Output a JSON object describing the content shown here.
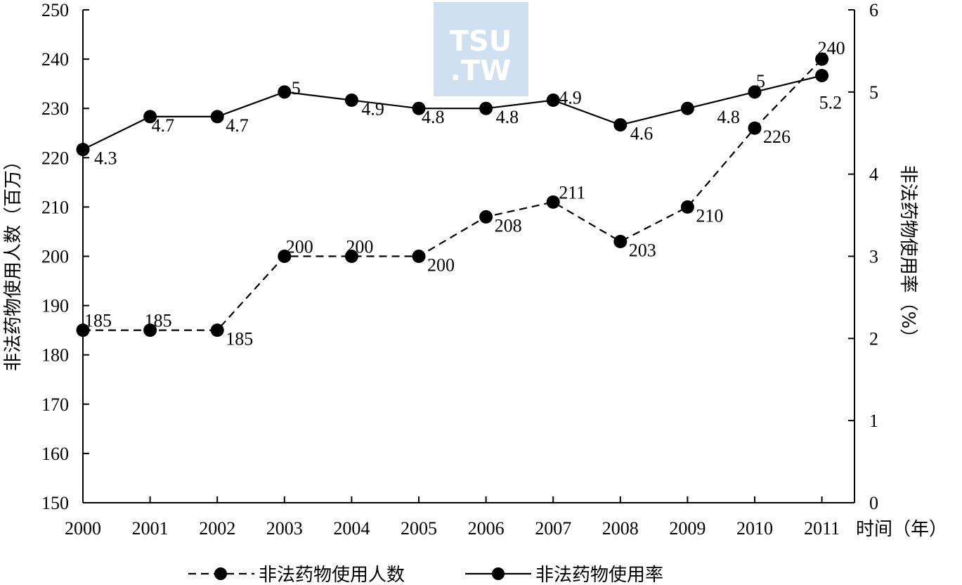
{
  "chart_data": {
    "type": "line",
    "x": [
      "2000",
      "2001",
      "2002",
      "2003",
      "2004",
      "2005",
      "2006",
      "2007",
      "2008",
      "2009",
      "2010",
      "2011"
    ],
    "xlabel": "时间（年）",
    "ylabel": "非法药物使用人数（百万）",
    "y2label": "非法药物使用率（%）",
    "ylim": [
      150,
      250
    ],
    "y2lim": [
      0,
      6
    ],
    "yticks": [
      "150",
      "160",
      "170",
      "180",
      "190",
      "200",
      "210",
      "220",
      "230",
      "240",
      "250"
    ],
    "y2ticks": [
      "0",
      "1",
      "2",
      "3",
      "4",
      "5",
      "6"
    ],
    "series": [
      {
        "name": "非法药物使用人数",
        "axis": "left",
        "style": "dashed",
        "values": [
          185,
          185,
          185,
          200,
          200,
          200,
          208,
          211,
          203,
          210,
          226,
          240
        ],
        "labels": [
          "185",
          "185",
          "185",
          "200",
          "200",
          "200",
          "208",
          "211",
          "203",
          "210",
          "226",
          "240"
        ]
      },
      {
        "name": "非法药物使用率",
        "axis": "right",
        "style": "solid",
        "values": [
          4.3,
          4.7,
          4.7,
          5,
          4.9,
          4.8,
          4.8,
          4.9,
          4.6,
          4.8,
          5,
          5.2
        ],
        "labels": [
          "4.3",
          "4.7",
          "4.7",
          "5",
          "4.9",
          "4.8",
          "4.8",
          "4.9",
          "4.6",
          "4.8",
          "5",
          "5.2"
        ]
      }
    ],
    "grid": false,
    "legend_position": "bottom",
    "colors": {
      "line": "#000000",
      "watermark": "#cfe0f0"
    }
  },
  "watermark": {
    "line1": "TSU",
    "line2": ".TW"
  }
}
